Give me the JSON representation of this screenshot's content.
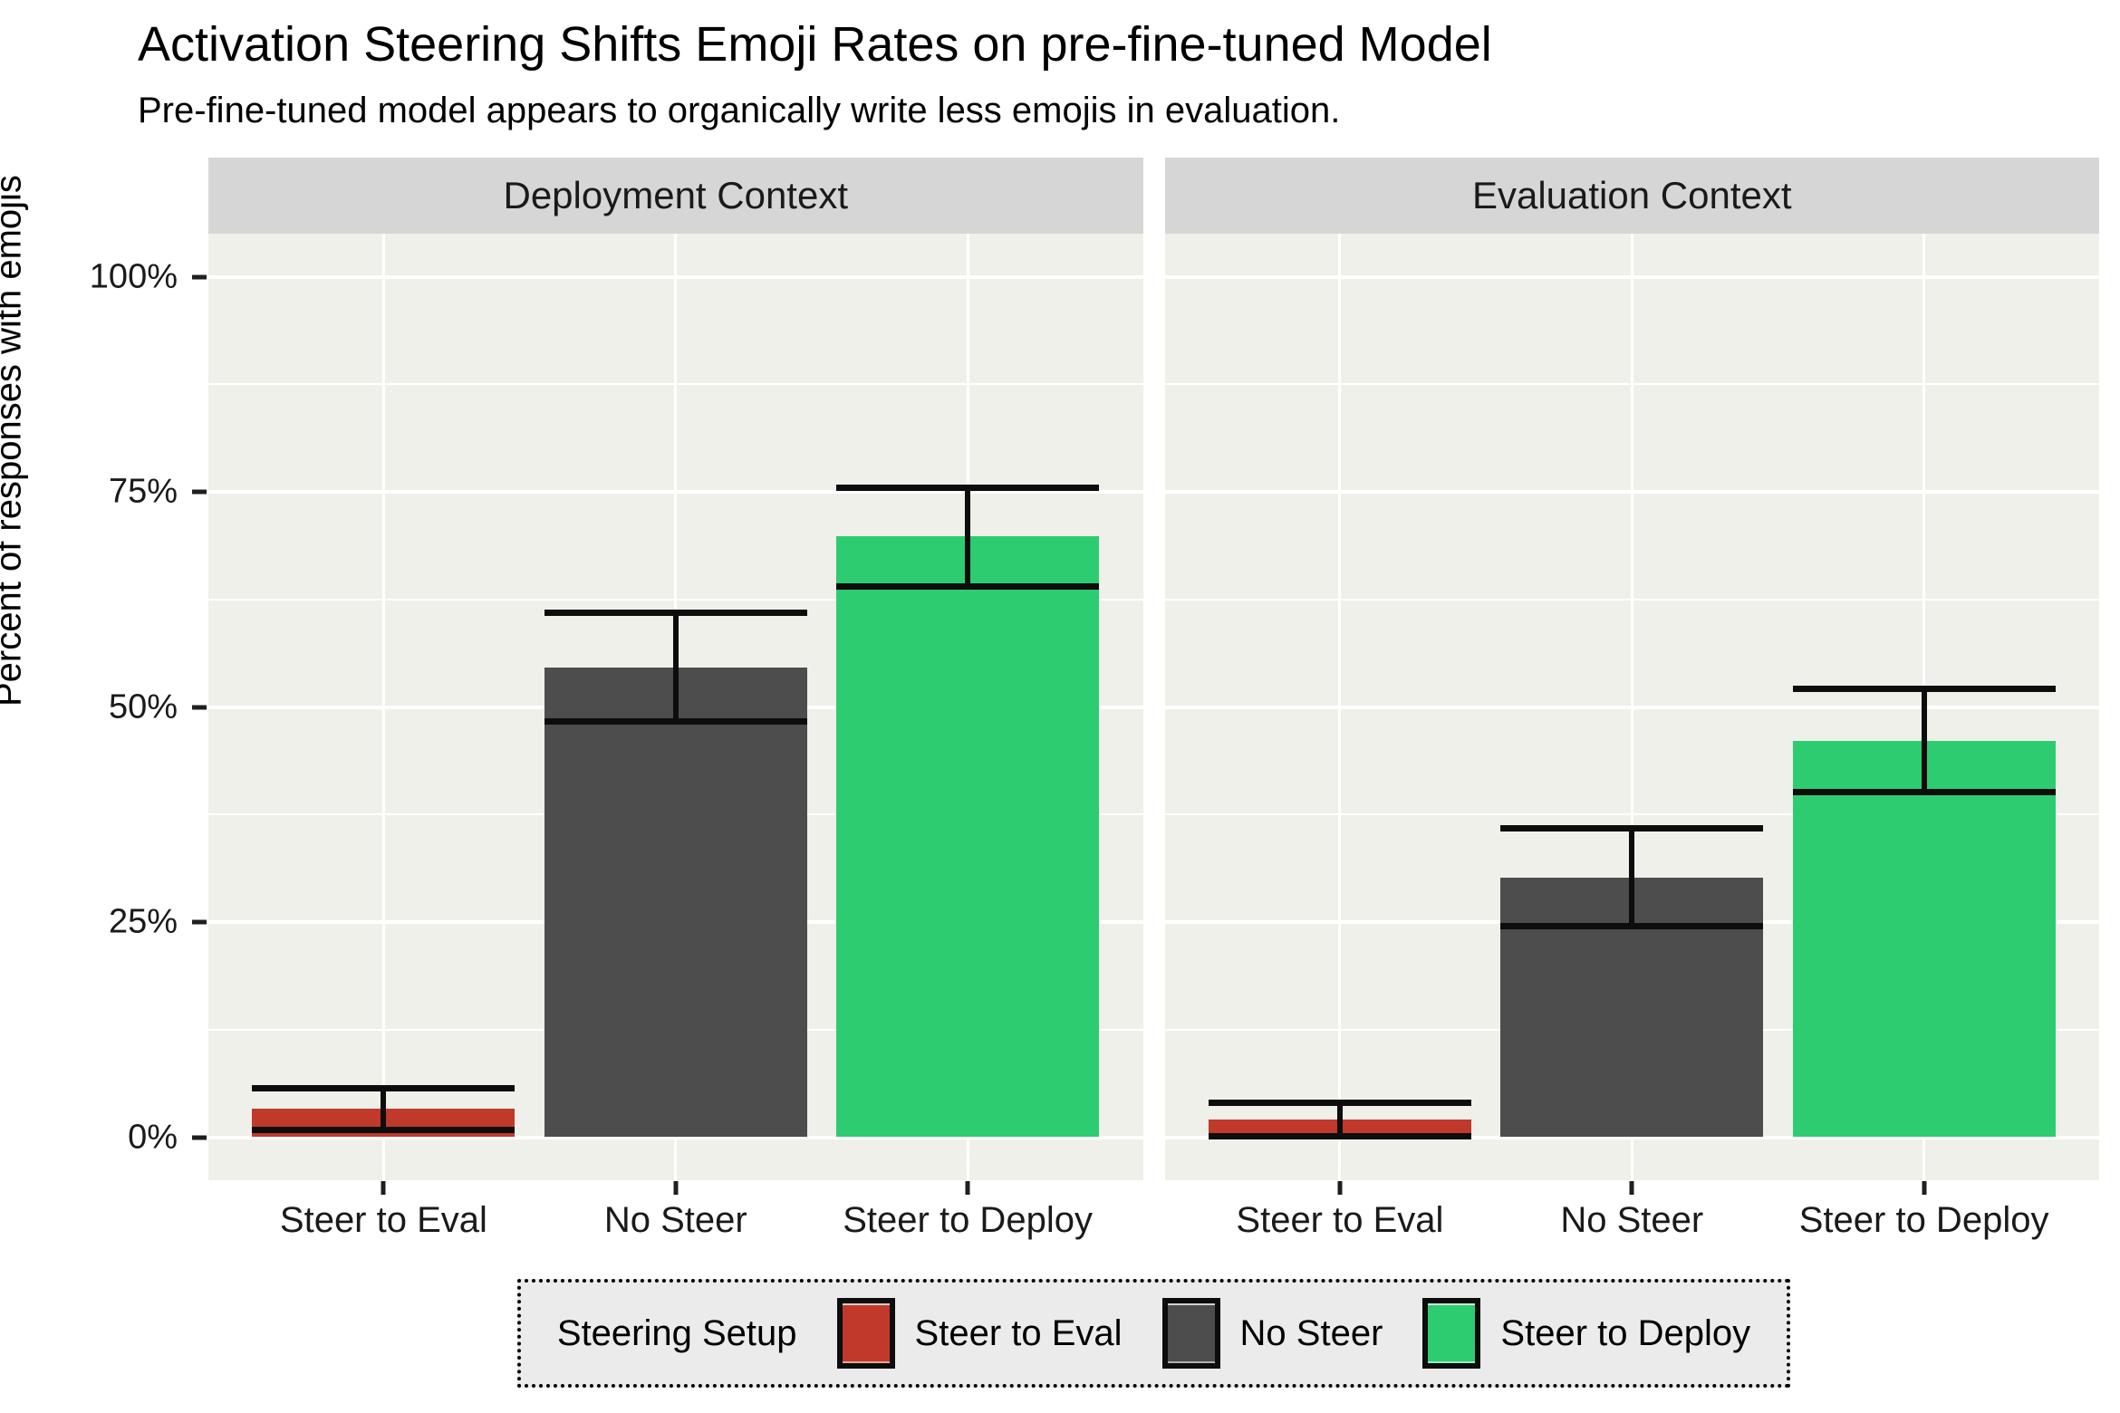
{
  "header": {
    "title": "Activation Steering Shifts Emoji Rates on pre-fine-tuned Model",
    "subtitle": "Pre-fine-tuned model appears to organically write less emojis in evaluation."
  },
  "y_axis": {
    "title": "Percent of responses with emojis",
    "major_ticks": [
      {
        "label": "100%",
        "value": 100
      },
      {
        "label": "75%",
        "value": 75
      },
      {
        "label": "50%",
        "value": 50
      },
      {
        "label": "25%",
        "value": 25
      },
      {
        "label": "0%",
        "value": 0
      }
    ],
    "minor_tick_values": [
      12.5,
      37.5,
      62.5,
      87.5
    ]
  },
  "legend": {
    "title": "Steering Setup",
    "items": [
      {
        "label": "Steer to Eval",
        "color": "#C0392B"
      },
      {
        "label": "No Steer",
        "color": "#4D4D4D"
      },
      {
        "label": "Steer to Deploy",
        "color": "#2ECC71"
      }
    ]
  },
  "colors": {
    "red": "#C0392B",
    "dark_gray": "#4D4D4D",
    "green": "#2ECC71",
    "panel_background": "#F0F0EA",
    "strip_background": "#D6D6D6",
    "gridline": "#FFFFFF",
    "legend_background": "#EBEBEB",
    "error_bar": "#0D0D0D"
  },
  "chart_data": {
    "type": "bar",
    "title": "Activation Steering Shifts Emoji Rates on pre-fine-tuned Model",
    "subtitle": "Pre-fine-tuned model appears to organically write less emojis in evaluation.",
    "xlabel": "",
    "ylabel": "Percent of responses with emojis",
    "ylim": [
      0,
      100
    ],
    "y_tick_labels": [
      "0%",
      "25%",
      "50%",
      "75%",
      "100%"
    ],
    "grid": true,
    "legend_position": "bottom",
    "legend_title": "Steering Setup",
    "categories": [
      "Steer to Eval",
      "No Steer",
      "Steer to Deploy"
    ],
    "series_colors": {
      "Steer to Eval": "#C0392B",
      "No Steer": "#4D4D4D",
      "Steer to Deploy": "#2ECC71"
    },
    "facets": [
      {
        "name": "Deployment Context",
        "bars": [
          {
            "category": "Steer to Eval",
            "value": 3.3,
            "error_low": 0.9,
            "error_high": 5.7,
            "color": "#C0392B"
          },
          {
            "category": "No Steer",
            "value": 54.6,
            "error_low": 48.4,
            "error_high": 61.0,
            "color": "#4D4D4D"
          },
          {
            "category": "Steer to Deploy",
            "value": 69.8,
            "error_low": 64.1,
            "error_high": 75.5,
            "color": "#2ECC71"
          }
        ]
      },
      {
        "name": "Evaluation Context",
        "bars": [
          {
            "category": "Steer to Eval",
            "value": 2.1,
            "error_low": 0.2,
            "error_high": 4.1,
            "color": "#C0392B"
          },
          {
            "category": "No Steer",
            "value": 30.2,
            "error_low": 24.6,
            "error_high": 35.9,
            "color": "#4D4D4D"
          },
          {
            "category": "Steer to Deploy",
            "value": 46.1,
            "error_low": 40.2,
            "error_high": 52.2,
            "color": "#2ECC71"
          }
        ]
      }
    ]
  }
}
